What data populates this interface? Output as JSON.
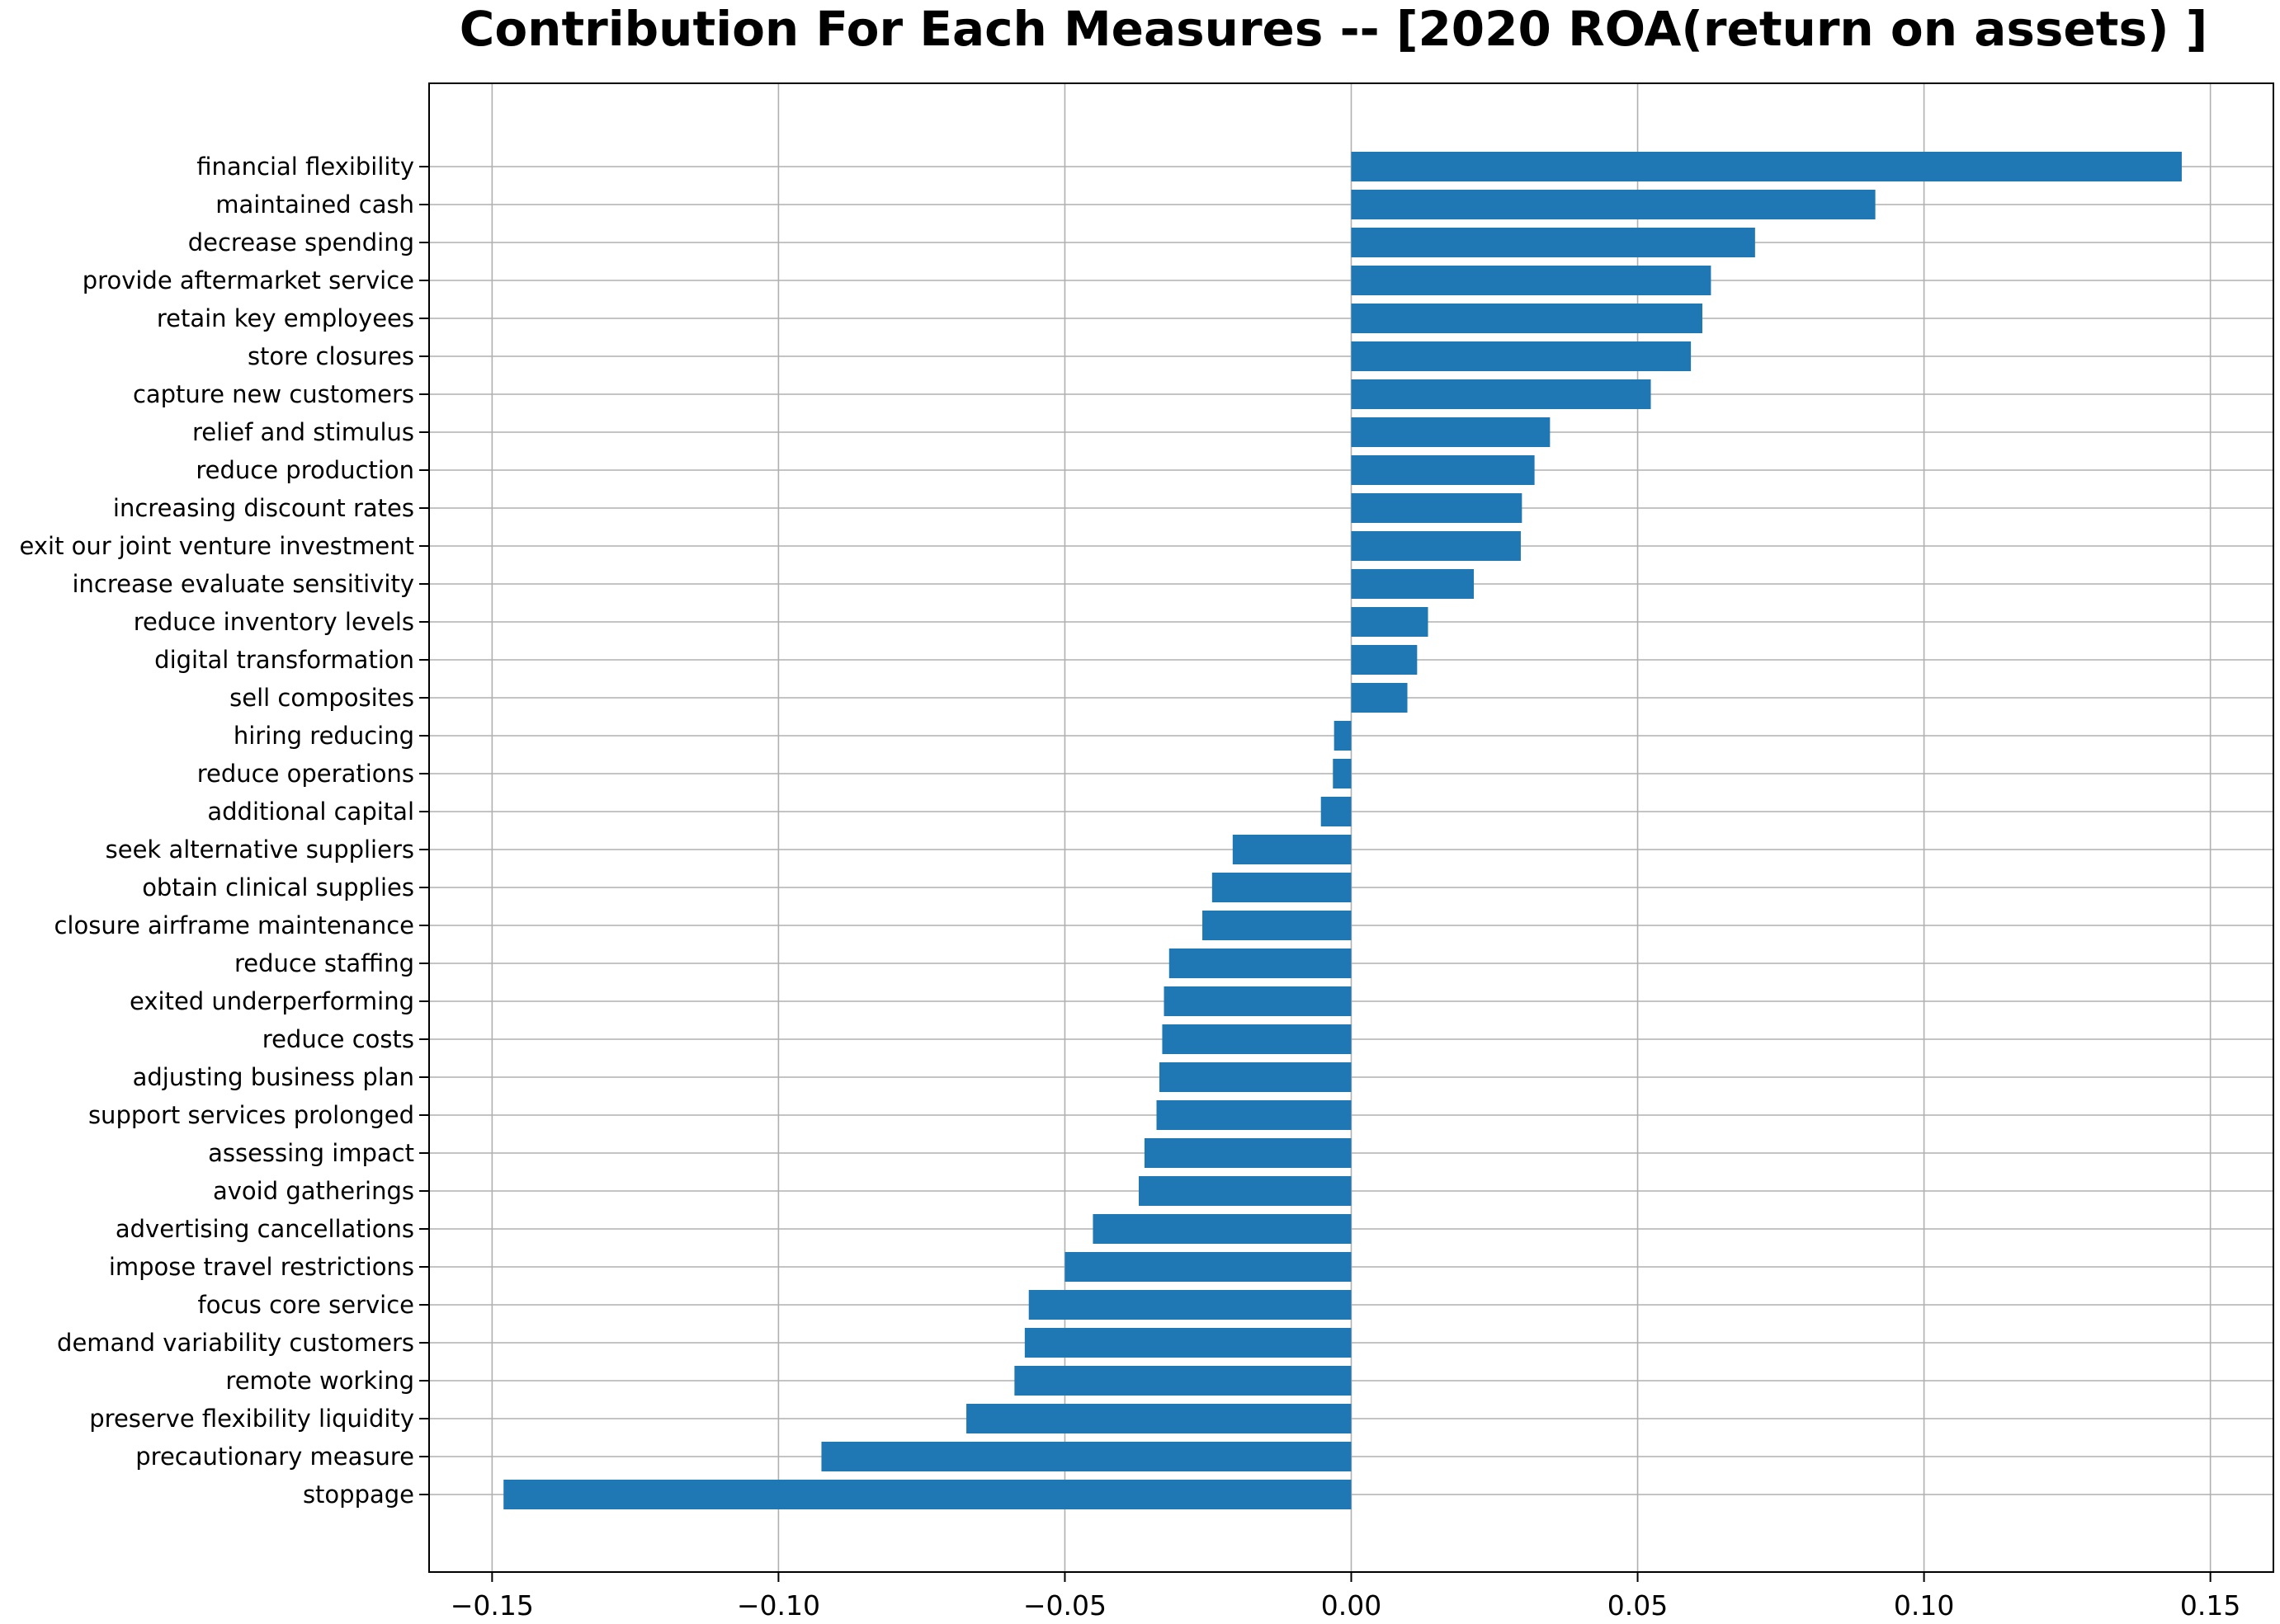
{
  "chart_data": {
    "type": "bar",
    "orientation": "horizontal",
    "title": "Contribution For Each Measures -- [2020 ROA(return on assets) ]",
    "xlabel": "",
    "ylabel": "",
    "xlim": [
      -0.161,
      0.161
    ],
    "xticks": [
      -0.15,
      -0.1,
      -0.05,
      0.0,
      0.05,
      0.1,
      0.15
    ],
    "xtick_labels": [
      "−0.15",
      "−0.10",
      "−0.05",
      "0.00",
      "0.05",
      "0.10",
      "0.15"
    ],
    "grid": true,
    "bar_color": "#1f77b4",
    "categories": [
      "financial flexibility",
      "maintained cash",
      "decrease spending",
      "provide aftermarket service",
      "retain key employees",
      "store closures",
      "capture new customers",
      "relief and stimulus",
      "reduce production",
      "increasing discount rates",
      "exit our joint venture investment",
      "increase evaluate sensitivity",
      "reduce inventory levels",
      "digital transformation",
      "sell composites",
      "hiring reducing",
      "reduce operations",
      "additional capital",
      "seek alternative suppliers",
      "obtain clinical supplies",
      "closure airframe maintenance",
      "reduce staffing",
      "exited underperforming",
      "reduce costs",
      "adjusting business plan",
      "support services prolonged",
      "assessing impact",
      "avoid gatherings",
      "advertising cancellations",
      "impose travel restrictions",
      "focus core service",
      "demand variability customers",
      "remote working",
      "preserve flexibility liquidity",
      "precautionary measure",
      "stoppage"
    ],
    "values": [
      0.145,
      0.0915,
      0.0705,
      0.0628,
      0.0613,
      0.0593,
      0.0523,
      0.0347,
      0.032,
      0.0298,
      0.0296,
      0.0214,
      0.0134,
      0.0115,
      0.0098,
      -0.003,
      -0.0032,
      -0.0053,
      -0.0207,
      -0.0243,
      -0.026,
      -0.0318,
      -0.0327,
      -0.033,
      -0.0335,
      -0.034,
      -0.0361,
      -0.0371,
      -0.0451,
      -0.05,
      -0.0563,
      -0.057,
      -0.0588,
      -0.0672,
      -0.0925,
      -0.148
    ]
  }
}
